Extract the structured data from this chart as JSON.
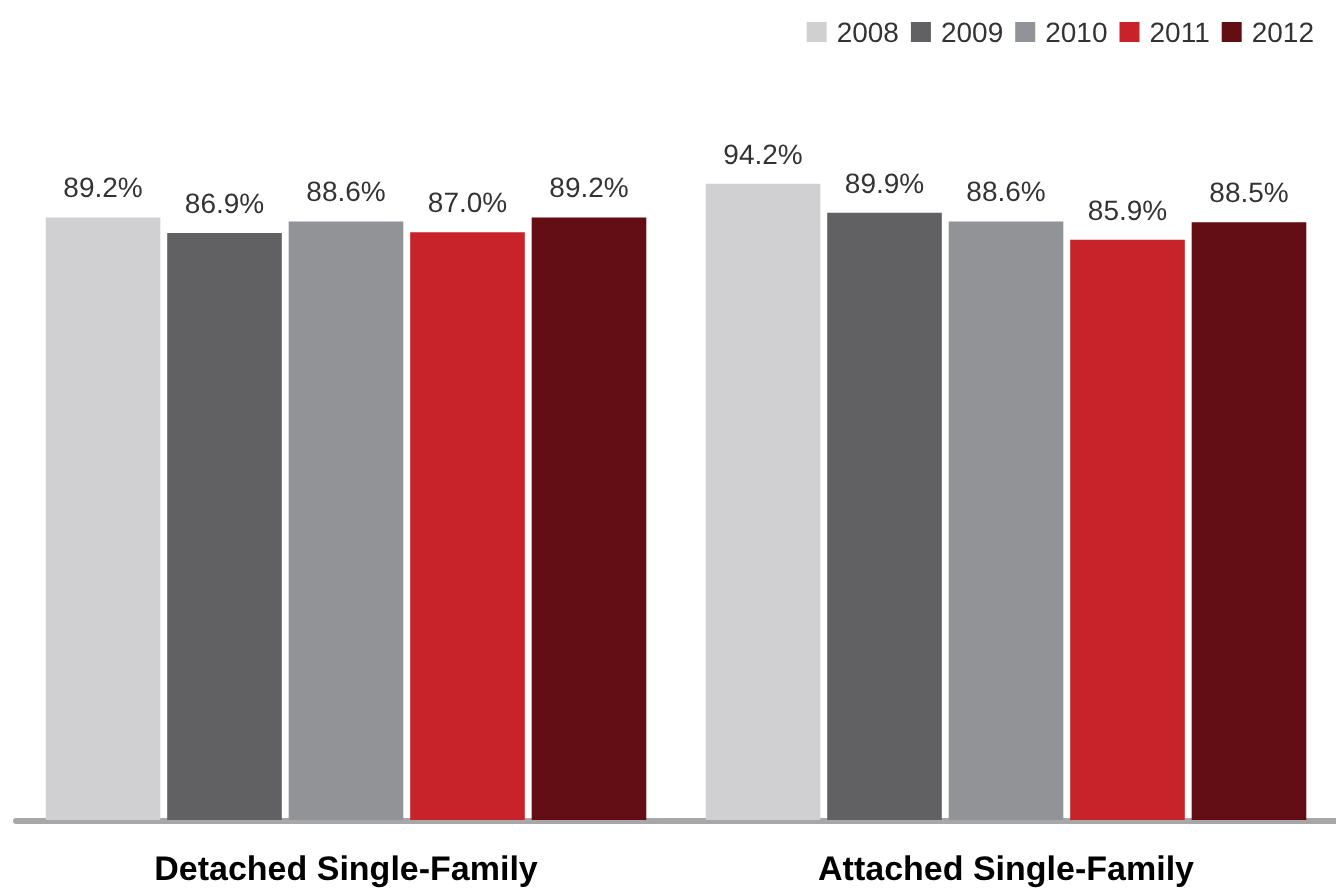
{
  "chart_data": {
    "type": "bar",
    "categories": [
      "Detached Single-Family",
      "Attached Single-Family"
    ],
    "series": [
      {
        "name": "2008",
        "color": "#d0d0d2",
        "values": [
          89.2,
          94.2
        ],
        "value_labels": [
          "89.2%",
          "94.2%"
        ]
      },
      {
        "name": "2009",
        "color": "#616163",
        "values": [
          86.9,
          89.9
        ],
        "value_labels": [
          "86.9%",
          "89.9%"
        ]
      },
      {
        "name": "2010",
        "color": "#929396",
        "values": [
          88.6,
          88.6
        ],
        "value_labels": [
          "88.6%",
          "88.6%"
        ]
      },
      {
        "name": "2011",
        "color": "#c8232a",
        "values": [
          87.0,
          85.9
        ],
        "value_labels": [
          "87.0%",
          "85.9%"
        ]
      },
      {
        "name": "2012",
        "color": "#630d14",
        "values": [
          89.2,
          88.5
        ],
        "value_labels": [
          "89.2%",
          "88.5%"
        ]
      }
    ],
    "legend": "top right"
  }
}
